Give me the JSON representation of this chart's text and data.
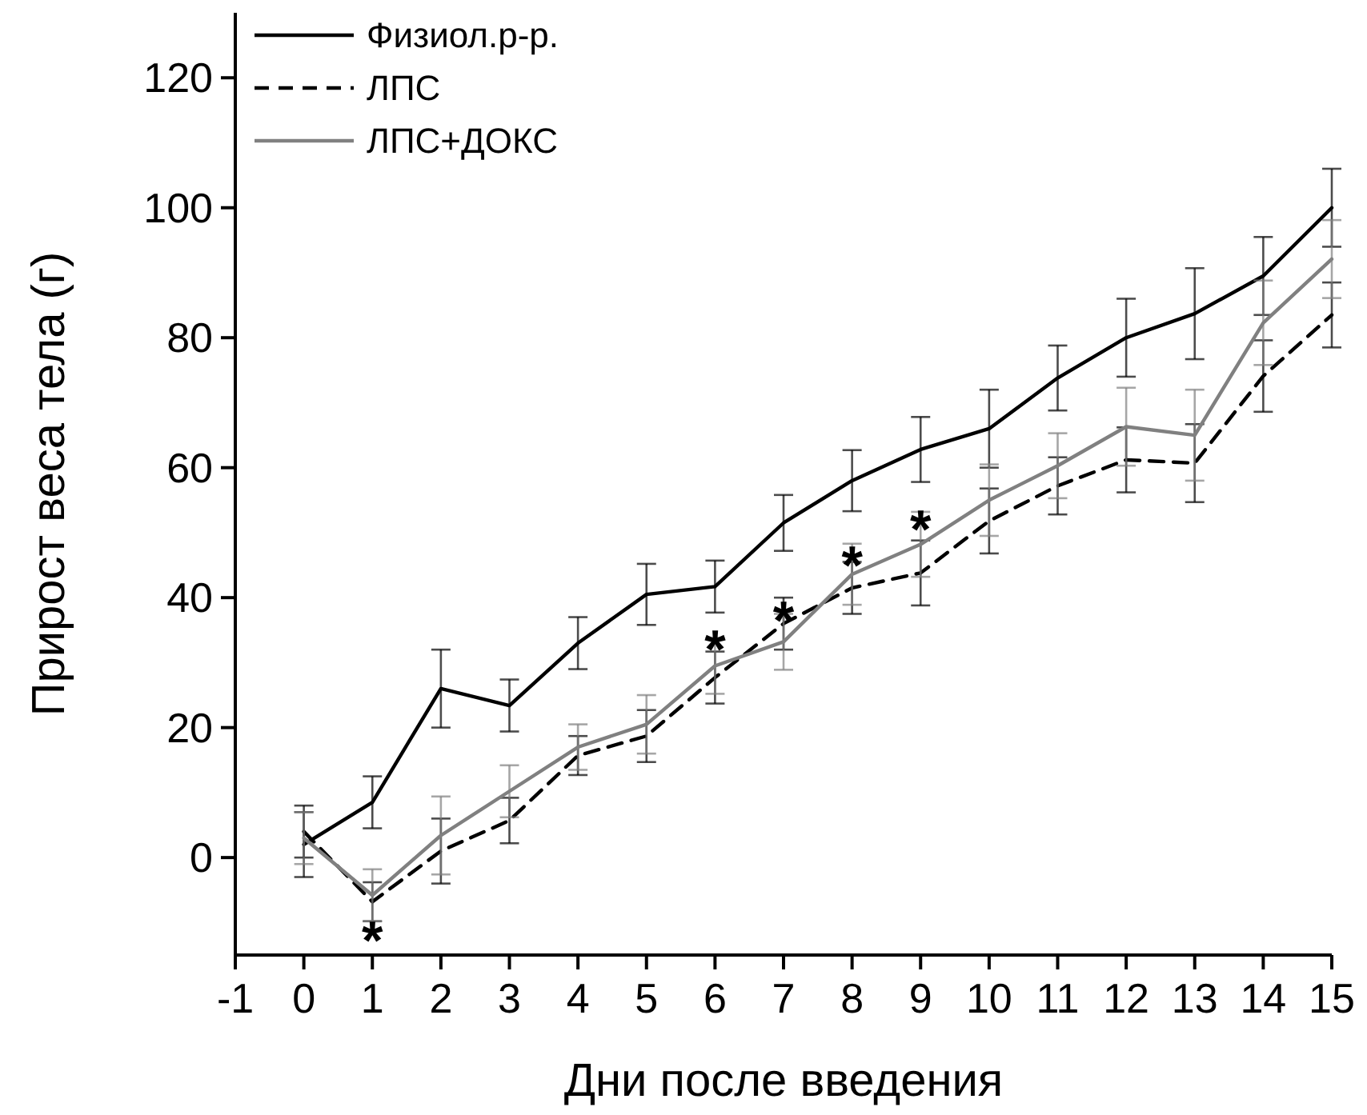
{
  "chart_data": {
    "type": "line",
    "xlabel": "Дни после введения",
    "ylabel": "Прирост веса тела (г)",
    "x": [
      0,
      1,
      2,
      3,
      4,
      5,
      6,
      7,
      8,
      9,
      10,
      11,
      12,
      13,
      14,
      15
    ],
    "xlim": [
      -1,
      15
    ],
    "xticks": [
      -1,
      0,
      1,
      2,
      3,
      4,
      5,
      6,
      7,
      8,
      9,
      10,
      11,
      12,
      13,
      14,
      15
    ],
    "ylim": [
      -15,
      130
    ],
    "yticks": [
      0,
      20,
      40,
      60,
      80,
      100,
      120
    ],
    "legend": "top left",
    "grid": false,
    "series": [
      {
        "name": "Физиол.р-р.",
        "color": "#000000",
        "line_style": "solid",
        "values": [
          2,
          8.5,
          26,
          23.4,
          33,
          40.5,
          41.7,
          51.5,
          58,
          62.8,
          66,
          73.8,
          80,
          83.7,
          89.5,
          100
        ],
        "errors": [
          5,
          4,
          6,
          4,
          4,
          4.7,
          4,
          4.3,
          4.7,
          5,
          6,
          5,
          6,
          7,
          6,
          6
        ]
      },
      {
        "name": "ЛПС",
        "color": "#000000",
        "line_style": "dashed",
        "values": [
          4,
          -6.8,
          1,
          5.7,
          15.7,
          18.7,
          27.7,
          36,
          41.5,
          43.8,
          51.8,
          57.2,
          61.2,
          60.7,
          74.1,
          83.5
        ],
        "errors": [
          4,
          3,
          5,
          3.5,
          3,
          4,
          4,
          4,
          4,
          5,
          5,
          4.4,
          5,
          6,
          5.5,
          5
        ]
      },
      {
        "name": "ЛПС+ДОКС",
        "color": "#808080",
        "line_style": "solid",
        "values": [
          3,
          -5.8,
          3.4,
          10.2,
          17,
          20.5,
          29.5,
          33.2,
          43.6,
          48.2,
          55,
          60.3,
          66.3,
          65,
          82.3,
          92.1
        ],
        "errors": [
          4,
          4,
          6,
          4,
          3.5,
          4.5,
          4.3,
          4.3,
          4.7,
          5,
          5.5,
          5,
          6,
          7,
          6.5,
          6
        ]
      }
    ],
    "annotations": [
      {
        "text": "*",
        "x": 1,
        "y": -9.8
      },
      {
        "text": "*",
        "x": 6,
        "y": 35
      },
      {
        "text": "*",
        "x": 7,
        "y": 39.5
      },
      {
        "text": "*",
        "x": 8,
        "y": 48
      },
      {
        "text": "*",
        "x": 9,
        "y": 53.5
      }
    ]
  }
}
